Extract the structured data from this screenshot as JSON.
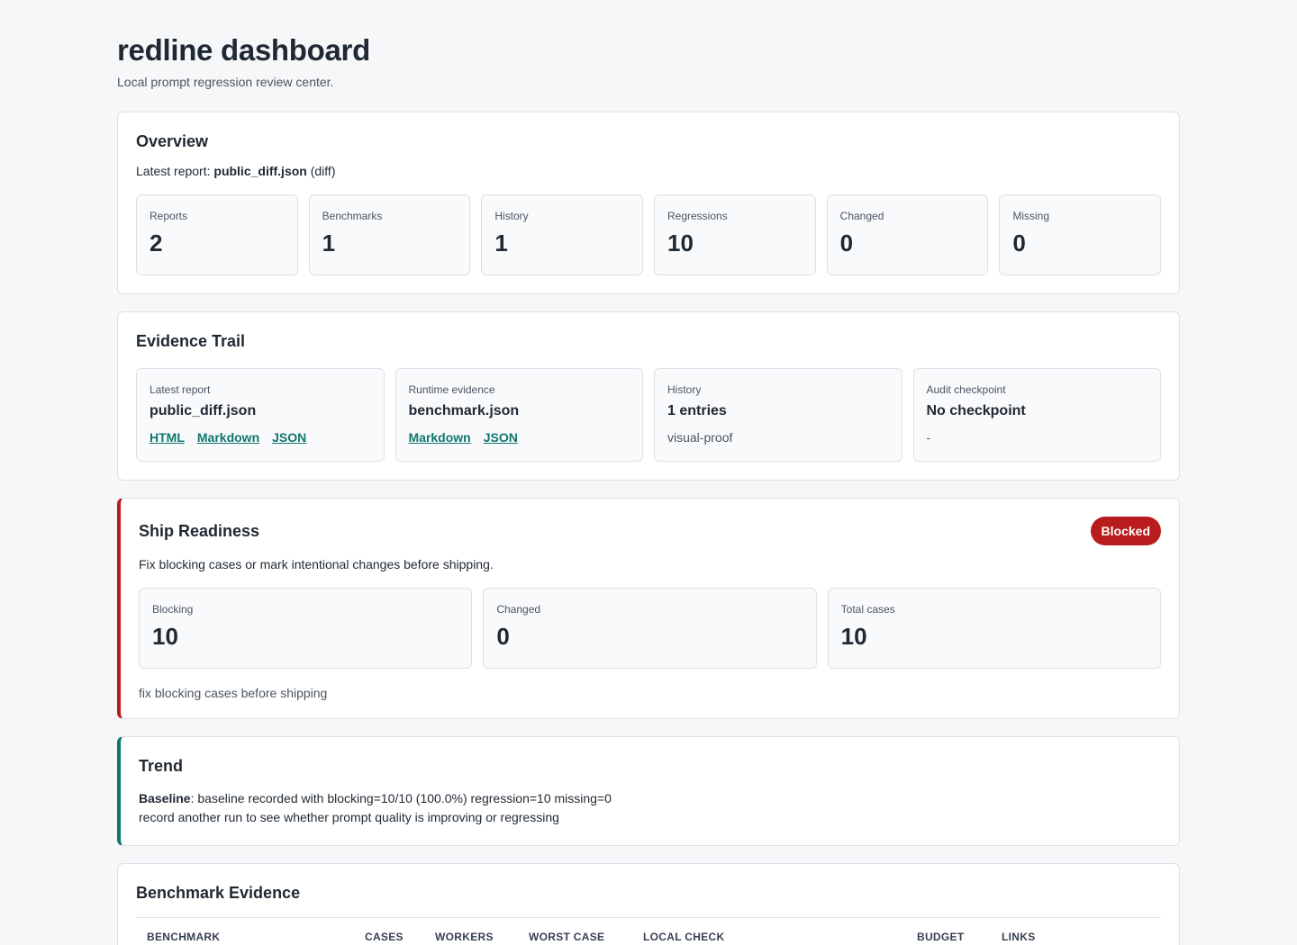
{
  "header": {
    "title": "redline dashboard",
    "subtitle": "Local prompt regression review center."
  },
  "overview": {
    "heading": "Overview",
    "latest_prefix": "Latest report: ",
    "latest_file": "public_diff.json",
    "latest_suffix": " (diff)",
    "stats": [
      {
        "label": "Reports",
        "value": "2"
      },
      {
        "label": "Benchmarks",
        "value": "1"
      },
      {
        "label": "History",
        "value": "1"
      },
      {
        "label": "Regressions",
        "value": "10"
      },
      {
        "label": "Changed",
        "value": "0"
      },
      {
        "label": "Missing",
        "value": "0"
      }
    ]
  },
  "evidence": {
    "heading": "Evidence Trail",
    "latest": {
      "label": "Latest report",
      "value": "public_diff.json",
      "links": [
        "HTML",
        "Markdown",
        "JSON"
      ]
    },
    "runtime": {
      "label": "Runtime evidence",
      "value": "benchmark.json",
      "links": [
        "Markdown",
        "JSON"
      ]
    },
    "history": {
      "label": "History",
      "value": "1 entries",
      "note": "visual-proof"
    },
    "audit": {
      "label": "Audit checkpoint",
      "value": "No checkpoint",
      "note": "-"
    }
  },
  "ship": {
    "heading": "Ship Readiness",
    "badge": "Blocked",
    "description": "Fix blocking cases or mark intentional changes before shipping.",
    "stats": [
      {
        "label": "Blocking",
        "value": "10"
      },
      {
        "label": "Changed",
        "value": "0"
      },
      {
        "label": "Total cases",
        "value": "10"
      }
    ],
    "footer": "fix blocking cases before shipping"
  },
  "trend": {
    "heading": "Trend",
    "baseline_label": "Baseline",
    "baseline_text": ": baseline recorded with blocking=10/10 (100.0%) regression=10 missing=0",
    "hint": "record another run to see whether prompt quality is improving or regressing"
  },
  "benchmark": {
    "heading": "Benchmark Evidence",
    "columns": [
      "Benchmark",
      "Cases",
      "Workers",
      "Worst case",
      "Local check",
      "Budget",
      "Links"
    ]
  },
  "colors": {
    "accent_teal": "#0f766e",
    "blocked_red": "#b91c1c"
  }
}
